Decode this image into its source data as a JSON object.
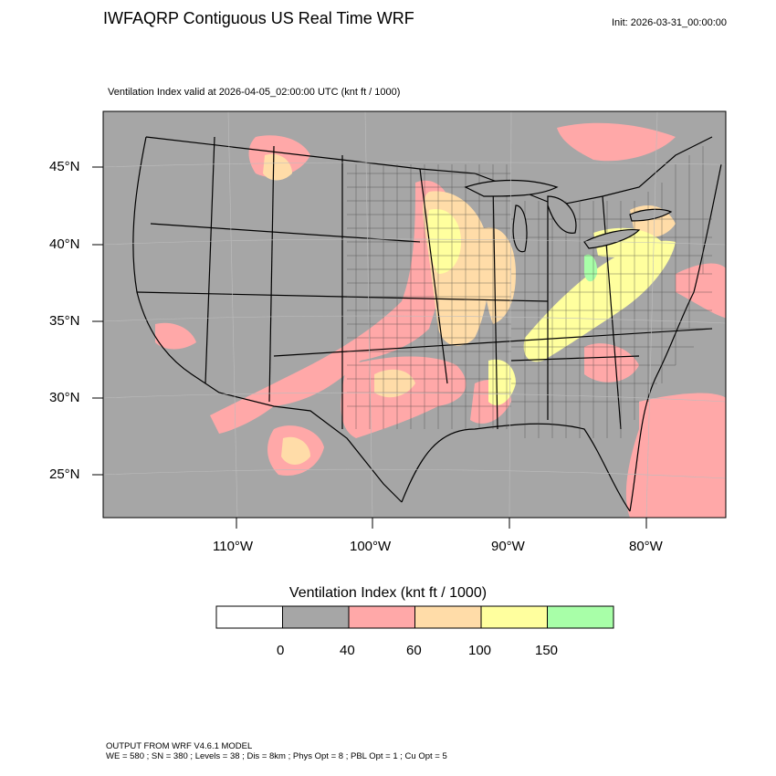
{
  "header": {
    "title": "IWFAQRP Contiguous US Real Time WRF",
    "init": "Init: 2026-03-31_00:00:00",
    "subtitle": "Ventilation Index valid at 2026-04-05_02:00:00 UTC   (knt ft / 1000)"
  },
  "map": {
    "lat_labels": [
      "45°N",
      "40°N",
      "35°N",
      "30°N",
      "25°N"
    ],
    "lon_labels": [
      "110°W",
      "100°W",
      "90°W",
      "80°W"
    ],
    "colors": {
      "background": "#a6a6a6",
      "band_40_60": "#ffa8a8",
      "band_60_100": "#ffdca8",
      "band_100_150": "#ffff9e",
      "band_150_plus": "#a8ffa8",
      "boundaries": "#000000"
    }
  },
  "legend": {
    "title": "Ventilation Index  (knt ft / 1000)",
    "boxes": [
      {
        "color": "#ffffff"
      },
      {
        "color": "#a6a6a6"
      },
      {
        "color": "#ffa8a8"
      },
      {
        "color": "#ffdca8"
      },
      {
        "color": "#ffff9e"
      },
      {
        "color": "#a8ffa8"
      }
    ],
    "labels": [
      "0",
      "40",
      "60",
      "100",
      "150"
    ]
  },
  "footer": {
    "line1": "OUTPUT FROM WRF V4.6.1 MODEL",
    "line2": "WE = 580 ; SN = 380 ; Levels = 38 ; Dis = 8km ; Phys Opt = 8 ; PBL Opt = 1 ; Cu Opt = 5"
  }
}
